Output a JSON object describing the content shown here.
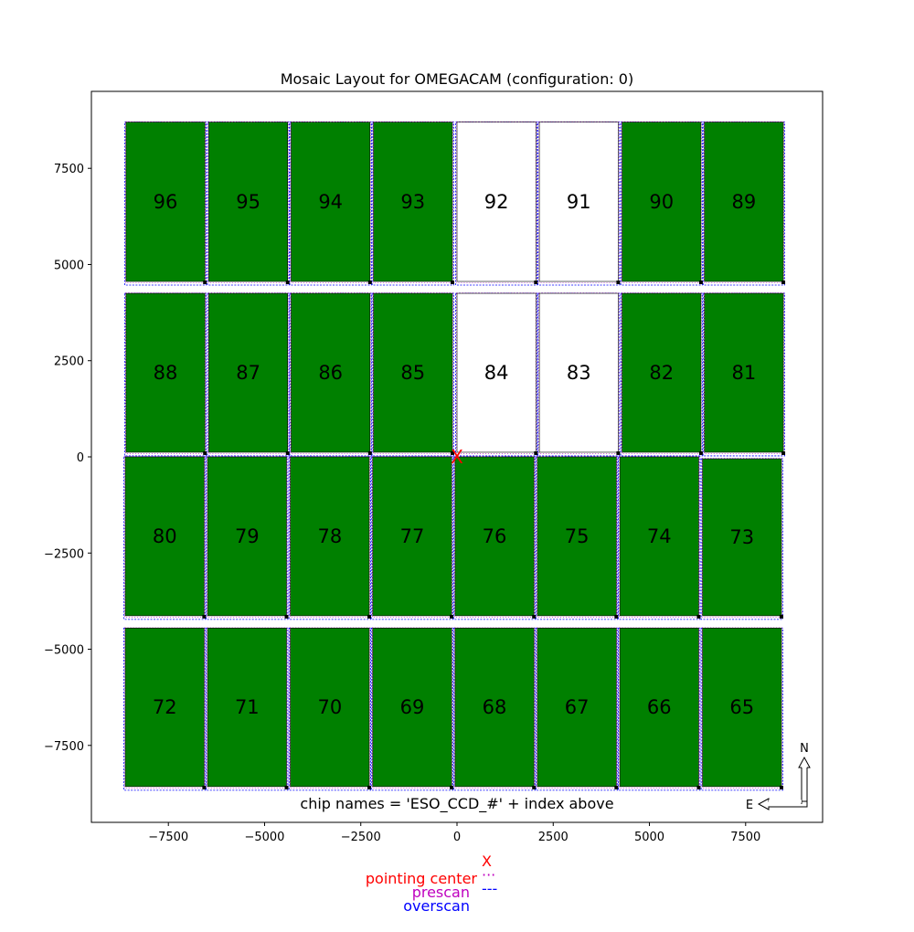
{
  "figure": {
    "title": "Mosaic Layout for OMEGACAM (configuration: 0)",
    "footer_note": "chip names = 'ESO_CCD_#' + index above",
    "compass": {
      "north": "N",
      "east": "E"
    },
    "colors": {
      "active_chip": "#008000",
      "inactive_chip": "#ffffff",
      "chip_edge": "#000000",
      "prescan": "#bf00bf",
      "overscan": "#0000ff",
      "pointing_center": "#ff0000"
    },
    "legend": [
      {
        "label": "pointing center",
        "symbol": "X",
        "color": "#ff0000"
      },
      {
        "label": "prescan",
        "symbol": "···",
        "color": "#bf00bf"
      },
      {
        "label": "overscan",
        "symbol": "---",
        "color": "#0000ff"
      }
    ],
    "pointing_center_marker": "X"
  },
  "chart_data": {
    "type": "diagram",
    "xlim": [
      -9500,
      9500
    ],
    "ylim": [
      -9500,
      9500
    ],
    "x_ticks": [
      -7500,
      -5000,
      -2500,
      0,
      2500,
      5000,
      7500
    ],
    "x_tick_labels": [
      "−7500",
      "−5000",
      "−2500",
      "0",
      "2500",
      "5000",
      "7500"
    ],
    "y_ticks": [
      7500,
      5000,
      2500,
      0,
      -2500,
      -5000,
      -7500
    ],
    "y_tick_labels": [
      "7500",
      "5000",
      "2500",
      "0",
      "−2500",
      "−5000",
      "−7500"
    ],
    "pointing_center": [
      0,
      0
    ],
    "chips": [
      {
        "index": "96",
        "x0": -8600,
        "x1": -6550,
        "y0": 4560,
        "y1": 8700,
        "active": true
      },
      {
        "index": "95",
        "x0": -6450,
        "x1": -4400,
        "y0": 4560,
        "y1": 8700,
        "active": true
      },
      {
        "index": "94",
        "x0": -4310,
        "x1": -2260,
        "y0": 4560,
        "y1": 8700,
        "active": true
      },
      {
        "index": "93",
        "x0": -2170,
        "x1": -120,
        "y0": 4560,
        "y1": 8700,
        "active": true
      },
      {
        "index": "92",
        "x0": 0,
        "x1": 2050,
        "y0": 4560,
        "y1": 8700,
        "active": false
      },
      {
        "index": "91",
        "x0": 2140,
        "x1": 4190,
        "y0": 4560,
        "y1": 8700,
        "active": false
      },
      {
        "index": "90",
        "x0": 4290,
        "x1": 6340,
        "y0": 4560,
        "y1": 8700,
        "active": true
      },
      {
        "index": "89",
        "x0": 6430,
        "x1": 8480,
        "y0": 4560,
        "y1": 8700,
        "active": true
      },
      {
        "index": "88",
        "x0": -8600,
        "x1": -6550,
        "y0": 120,
        "y1": 4250,
        "active": true
      },
      {
        "index": "87",
        "x0": -6450,
        "x1": -4400,
        "y0": 120,
        "y1": 4250,
        "active": true
      },
      {
        "index": "86",
        "x0": -4310,
        "x1": -2260,
        "y0": 120,
        "y1": 4250,
        "active": true
      },
      {
        "index": "85",
        "x0": -2170,
        "x1": -120,
        "y0": 120,
        "y1": 4250,
        "active": true
      },
      {
        "index": "84",
        "x0": 0,
        "x1": 2050,
        "y0": 120,
        "y1": 4250,
        "active": false
      },
      {
        "index": "83",
        "x0": 2140,
        "x1": 4190,
        "y0": 120,
        "y1": 4250,
        "active": false
      },
      {
        "index": "82",
        "x0": 4290,
        "x1": 6340,
        "y0": 120,
        "y1": 4250,
        "active": true
      },
      {
        "index": "81",
        "x0": 6430,
        "x1": 8480,
        "y0": 120,
        "y1": 4250,
        "active": true
      },
      {
        "index": "80",
        "x0": -8620,
        "x1": -6570,
        "y0": -4130,
        "y1": 0,
        "active": true
      },
      {
        "index": "79",
        "x0": -6480,
        "x1": -4430,
        "y0": -4130,
        "y1": 0,
        "active": true
      },
      {
        "index": "78",
        "x0": -4330,
        "x1": -2280,
        "y0": -4130,
        "y1": 0,
        "active": true
      },
      {
        "index": "77",
        "x0": -2190,
        "x1": -140,
        "y0": -4130,
        "y1": 0,
        "active": true
      },
      {
        "index": "76",
        "x0": -50,
        "x1": 2000,
        "y0": -4130,
        "y1": 0,
        "active": true
      },
      {
        "index": "75",
        "x0": 2090,
        "x1": 4140,
        "y0": -4130,
        "y1": 0,
        "active": true
      },
      {
        "index": "74",
        "x0": 4230,
        "x1": 6280,
        "y0": -4130,
        "y1": 0,
        "active": true
      },
      {
        "index": "73",
        "x0": 6380,
        "x1": 8430,
        "y0": -4130,
        "y1": -50,
        "active": true
      },
      {
        "index": "72",
        "x0": -8620,
        "x1": -6570,
        "y0": -8570,
        "y1": -4450,
        "active": true
      },
      {
        "index": "71",
        "x0": -6480,
        "x1": -4430,
        "y0": -8570,
        "y1": -4450,
        "active": true
      },
      {
        "index": "70",
        "x0": -4330,
        "x1": -2280,
        "y0": -8570,
        "y1": -4450,
        "active": true
      },
      {
        "index": "69",
        "x0": -2190,
        "x1": -140,
        "y0": -8570,
        "y1": -4450,
        "active": true
      },
      {
        "index": "68",
        "x0": -50,
        "x1": 2000,
        "y0": -8570,
        "y1": -4450,
        "active": true
      },
      {
        "index": "67",
        "x0": 2090,
        "x1": 4140,
        "y0": -8570,
        "y1": -4450,
        "active": true
      },
      {
        "index": "66",
        "x0": 4230,
        "x1": 6280,
        "y0": -8570,
        "y1": -4450,
        "active": true
      },
      {
        "index": "65",
        "x0": 6380,
        "x1": 8430,
        "y0": -8570,
        "y1": -4450,
        "active": true
      }
    ]
  }
}
